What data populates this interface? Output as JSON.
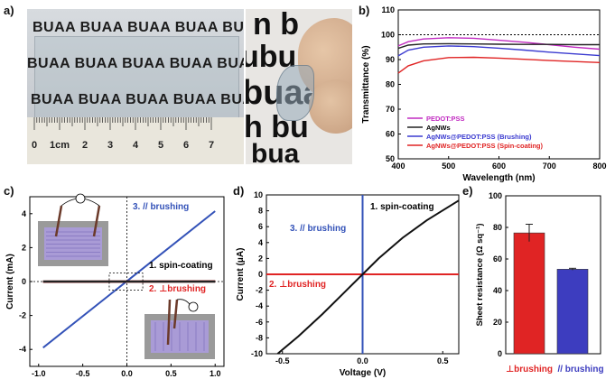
{
  "panels": {
    "a": "a)",
    "b": "b)",
    "c": "c)",
    "d": "d)",
    "e": "e)"
  },
  "photo_a": {
    "rows": [
      "BUAA BUAA BUAA BUAA BUAA",
      "BUAA BUAA BUAA BUAA BUAA",
      "BUAA BUAA BUAA BUAA BUAA"
    ],
    "ruler_numbers": [
      "0",
      "1cm",
      "2",
      "3",
      "4",
      "5",
      "6",
      "7"
    ],
    "right_text": [
      "n b",
      "ubu",
      "buaa",
      "h bu",
      "bua"
    ]
  },
  "chart_data": [
    {
      "id": "b",
      "type": "line",
      "xlabel": "Wavelength  (nm)",
      "ylabel": "Transmittance (%)",
      "xlim": [
        400,
        800
      ],
      "ylim": [
        50,
        110
      ],
      "xticks": [
        "400",
        "500",
        "600",
        "700",
        "800"
      ],
      "yticks": [
        "50",
        "60",
        "70",
        "80",
        "90",
        "100",
        "110"
      ],
      "reference_line": 100,
      "x": [
        400,
        420,
        450,
        500,
        550,
        600,
        650,
        700,
        750,
        800
      ],
      "series": [
        {
          "name": "PEDOT:PSS",
          "color": "#c12bc1",
          "values": [
            95.5,
            97.2,
            98.3,
            98.8,
            98.6,
            97.8,
            97.0,
            96.0,
            95.0,
            94.2
          ]
        },
        {
          "name": "AgNWs",
          "color": "#222222",
          "values": [
            94.5,
            95.8,
            96.3,
            96.4,
            96.3,
            96.2,
            96.1,
            96.1,
            96.0,
            96.0
          ]
        },
        {
          "name": "AgNWs@PEDOT:PSS (Brushing)",
          "color": "#3b3bd0",
          "values": [
            91.5,
            93.8,
            95.0,
            95.5,
            95.2,
            94.6,
            93.8,
            93.0,
            92.3,
            91.6
          ]
        },
        {
          "name": "AgNWs@PEDOT:PSS (Spin-coating)",
          "color": "#e02424",
          "values": [
            84.5,
            87.5,
            89.5,
            90.8,
            90.9,
            90.6,
            90.1,
            89.6,
            89.2,
            88.8
          ]
        }
      ]
    },
    {
      "id": "c",
      "type": "line",
      "xlabel": "Voltage (V)",
      "ylabel": "Current (mA)",
      "xlim": [
        -1.1,
        1.1
      ],
      "ylim": [
        -5,
        5
      ],
      "xticks": [
        "-1.0",
        "-0.5",
        "0.0",
        "0.5",
        "1.0"
      ],
      "yticks": [
        "-4",
        "-2",
        "0",
        "2",
        "4"
      ],
      "series": [
        {
          "name": "3. // brushing",
          "color": "#3352b8",
          "x": [
            -0.95,
            1.0
          ],
          "y": [
            -3.9,
            4.15
          ]
        },
        {
          "name": "2. ⊥brushing",
          "color": "#e02424",
          "x": [
            -0.95,
            1.0
          ],
          "y": [
            -0.01,
            0.01
          ]
        },
        {
          "name": "1. spin-coating",
          "color": "#222222",
          "x": [
            -0.95,
            1.0
          ],
          "y": [
            -0.002,
            0.002
          ]
        }
      ],
      "labels": [
        "3. // brushing",
        "1. spin-coating",
        "2. ⊥brushing"
      ]
    },
    {
      "id": "d",
      "type": "line",
      "xlabel": "Voltage (V)",
      "ylabel": "Current (μA)",
      "xlim": [
        -0.6,
        0.6
      ],
      "ylim": [
        -10,
        10
      ],
      "xticks": [
        "-0.5",
        "0.0",
        "0.5"
      ],
      "yticks": [
        "-10",
        "-8",
        "-6",
        "-4",
        "-2",
        "0",
        "2",
        "4",
        "6",
        "8",
        "10"
      ],
      "series": [
        {
          "name": "1. spin-coating",
          "color": "#111111",
          "x": [
            -0.53,
            -0.4,
            -0.25,
            -0.1,
            0.0,
            0.1,
            0.25,
            0.4,
            0.6
          ],
          "y": [
            -10,
            -7.8,
            -5.0,
            -2.0,
            0.0,
            2.0,
            4.6,
            6.8,
            9.3
          ]
        },
        {
          "name": "2. ⊥brushing",
          "color": "#e02424",
          "x": [
            -0.6,
            0.6
          ],
          "y": [
            0.0,
            0.0
          ]
        },
        {
          "name": "3. // brushing",
          "color": "#3352b8",
          "x": [
            0.0,
            0.0
          ],
          "y": [
            -10,
            10
          ]
        }
      ],
      "labels": [
        "1. spin-coating",
        "3. // brushing",
        "2. ⊥brushing"
      ]
    },
    {
      "id": "e",
      "type": "bar",
      "ylabel": "Sheet resistance (Ω sq⁻¹)",
      "ylim": [
        0,
        100
      ],
      "yticks": [
        "0",
        "20",
        "40",
        "60",
        "80",
        "100"
      ],
      "categories": [
        "⊥brushing",
        "// brushing"
      ],
      "values": [
        76.5,
        53.5
      ],
      "errors": [
        5.5,
        0.6
      ],
      "colors": [
        "#e02424",
        "#3d3dbf"
      ]
    }
  ]
}
